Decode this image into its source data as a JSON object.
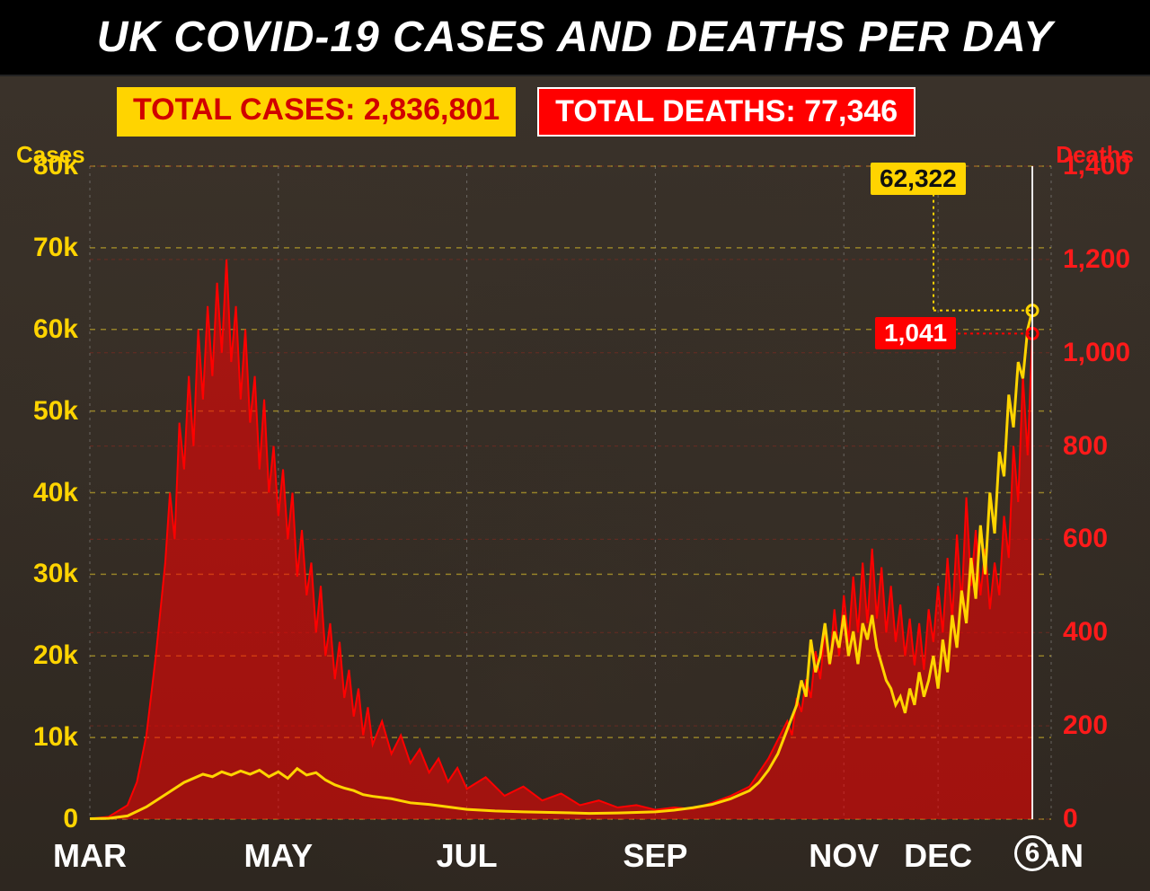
{
  "title": "UK COVID-19 CASES AND DEATHS PER DAY",
  "chart": {
    "type": "dual-axis-line-area",
    "background_color": "#2e2720",
    "title_fontsize": 48,
    "title_color": "#ffffff",
    "axis_left": {
      "label": "Cases",
      "label_color": "#ffd400",
      "label_fontsize": 26,
      "ylim": [
        0,
        80000
      ],
      "ticks": [
        0,
        10000,
        20000,
        30000,
        40000,
        50000,
        60000,
        70000,
        80000
      ],
      "tick_labels": [
        "0",
        "10k",
        "20k",
        "30k",
        "40k",
        "50k",
        "60k",
        "70k",
        "80k"
      ],
      "tick_color": "#ffd400",
      "tick_fontsize": 30,
      "grid_color": "#bfa62a",
      "grid_dash": "6,6"
    },
    "axis_right": {
      "label": "Deaths",
      "label_color": "#ff1a1a",
      "label_fontsize": 26,
      "ylim": [
        0,
        1400
      ],
      "ticks": [
        0,
        200,
        400,
        600,
        800,
        1000,
        1200,
        1400
      ],
      "tick_labels": [
        "0",
        "200",
        "400",
        "600",
        "800",
        "1,000",
        "1,200",
        "1,400"
      ],
      "tick_color": "#ff1a1a",
      "tick_fontsize": 30,
      "grid_color": "#8a2a20",
      "grid_dash": "4,4"
    },
    "axis_x": {
      "ticks": [
        0,
        2,
        4,
        6,
        8,
        9,
        10.2
      ],
      "tick_labels": [
        "MAR",
        "MAY",
        "JUL",
        "SEP",
        "NOV",
        "DEC",
        "JAN"
      ],
      "tick_color": "#ffffff",
      "tick_fontsize": 36,
      "xlim": [
        0,
        10.2
      ],
      "grid_color": "#aaaaaa",
      "grid_dash": "3,5",
      "highlight_date": {
        "label": "6",
        "position": 10.0
      }
    },
    "totals": {
      "cases": {
        "label": "TOTAL CASES: 2,836,801",
        "bg": "#ffd400",
        "fg": "#d10000"
      },
      "deaths": {
        "label": "TOTAL DEATHS: 77,346",
        "bg": "#ff0000",
        "fg": "#ffffff"
      }
    },
    "callouts": {
      "cases": {
        "value": "62,322",
        "bg": "#ffd400",
        "fg": "#111111",
        "x": 10.0,
        "y_cases": 62322
      },
      "deaths": {
        "value": "1,041",
        "bg": "#ff0000",
        "fg": "#ffffff",
        "x": 10.0,
        "y_deaths": 1041
      }
    },
    "series_cases": {
      "color": "#ffd400",
      "line_width": 3,
      "end_marker_radius": 6,
      "data": [
        [
          0,
          50
        ],
        [
          0.2,
          100
        ],
        [
          0.4,
          400
        ],
        [
          0.6,
          1500
        ],
        [
          0.8,
          3000
        ],
        [
          1.0,
          4500
        ],
        [
          1.1,
          5000
        ],
        [
          1.2,
          5500
        ],
        [
          1.3,
          5200
        ],
        [
          1.4,
          5800
        ],
        [
          1.5,
          5400
        ],
        [
          1.6,
          5900
        ],
        [
          1.7,
          5500
        ],
        [
          1.8,
          6000
        ],
        [
          1.9,
          5200
        ],
        [
          2.0,
          5800
        ],
        [
          2.1,
          5000
        ],
        [
          2.2,
          6200
        ],
        [
          2.3,
          5400
        ],
        [
          2.4,
          5700
        ],
        [
          2.5,
          4800
        ],
        [
          2.6,
          4200
        ],
        [
          2.7,
          3800
        ],
        [
          2.8,
          3500
        ],
        [
          2.9,
          3000
        ],
        [
          3.0,
          2800
        ],
        [
          3.2,
          2500
        ],
        [
          3.4,
          2000
        ],
        [
          3.6,
          1800
        ],
        [
          3.8,
          1500
        ],
        [
          4.0,
          1200
        ],
        [
          4.3,
          1000
        ],
        [
          4.6,
          900
        ],
        [
          5.0,
          800
        ],
        [
          5.3,
          700
        ],
        [
          5.6,
          750
        ],
        [
          6.0,
          900
        ],
        [
          6.2,
          1100
        ],
        [
          6.4,
          1400
        ],
        [
          6.6,
          1800
        ],
        [
          6.8,
          2500
        ],
        [
          7.0,
          3500
        ],
        [
          7.1,
          4500
        ],
        [
          7.2,
          6000
        ],
        [
          7.3,
          8000
        ],
        [
          7.4,
          11000
        ],
        [
          7.5,
          14000
        ],
        [
          7.55,
          17000
        ],
        [
          7.6,
          15000
        ],
        [
          7.65,
          22000
        ],
        [
          7.7,
          18000
        ],
        [
          7.75,
          20000
        ],
        [
          7.8,
          24000
        ],
        [
          7.85,
          19000
        ],
        [
          7.9,
          23000
        ],
        [
          7.95,
          21000
        ],
        [
          8.0,
          25000
        ],
        [
          8.05,
          20000
        ],
        [
          8.1,
          23000
        ],
        [
          8.15,
          19000
        ],
        [
          8.2,
          24000
        ],
        [
          8.25,
          22000
        ],
        [
          8.3,
          25000
        ],
        [
          8.35,
          21000
        ],
        [
          8.4,
          19000
        ],
        [
          8.45,
          17000
        ],
        [
          8.5,
          16000
        ],
        [
          8.55,
          14000
        ],
        [
          8.6,
          15000
        ],
        [
          8.65,
          13000
        ],
        [
          8.7,
          16000
        ],
        [
          8.75,
          14000
        ],
        [
          8.8,
          18000
        ],
        [
          8.85,
          15000
        ],
        [
          8.9,
          17000
        ],
        [
          8.95,
          20000
        ],
        [
          9.0,
          16000
        ],
        [
          9.05,
          22000
        ],
        [
          9.1,
          18000
        ],
        [
          9.15,
          25000
        ],
        [
          9.2,
          21000
        ],
        [
          9.25,
          28000
        ],
        [
          9.3,
          24000
        ],
        [
          9.35,
          32000
        ],
        [
          9.4,
          27000
        ],
        [
          9.45,
          36000
        ],
        [
          9.5,
          30000
        ],
        [
          9.55,
          40000
        ],
        [
          9.6,
          35000
        ],
        [
          9.65,
          45000
        ],
        [
          9.7,
          42000
        ],
        [
          9.75,
          52000
        ],
        [
          9.8,
          48000
        ],
        [
          9.85,
          56000
        ],
        [
          9.9,
          54000
        ],
        [
          9.95,
          60000
        ],
        [
          10.0,
          62322
        ]
      ]
    },
    "series_deaths": {
      "fill_color": "#ff0000",
      "fill_opacity": 0.55,
      "stroke_color": "#ff0000",
      "line_width": 2,
      "end_marker_radius": 6,
      "data": [
        [
          0,
          1
        ],
        [
          0.2,
          5
        ],
        [
          0.4,
          30
        ],
        [
          0.5,
          80
        ],
        [
          0.6,
          180
        ],
        [
          0.7,
          350
        ],
        [
          0.8,
          550
        ],
        [
          0.85,
          700
        ],
        [
          0.9,
          600
        ],
        [
          0.95,
          850
        ],
        [
          1.0,
          750
        ],
        [
          1.05,
          950
        ],
        [
          1.1,
          800
        ],
        [
          1.15,
          1050
        ],
        [
          1.2,
          900
        ],
        [
          1.25,
          1100
        ],
        [
          1.3,
          950
        ],
        [
          1.35,
          1150
        ],
        [
          1.4,
          1000
        ],
        [
          1.45,
          1200
        ],
        [
          1.5,
          980
        ],
        [
          1.55,
          1100
        ],
        [
          1.6,
          900
        ],
        [
          1.65,
          1050
        ],
        [
          1.7,
          850
        ],
        [
          1.75,
          950
        ],
        [
          1.8,
          750
        ],
        [
          1.85,
          900
        ],
        [
          1.9,
          700
        ],
        [
          1.95,
          800
        ],
        [
          2.0,
          650
        ],
        [
          2.05,
          750
        ],
        [
          2.1,
          600
        ],
        [
          2.15,
          700
        ],
        [
          2.2,
          520
        ],
        [
          2.25,
          620
        ],
        [
          2.3,
          480
        ],
        [
          2.35,
          550
        ],
        [
          2.4,
          400
        ],
        [
          2.45,
          500
        ],
        [
          2.5,
          350
        ],
        [
          2.55,
          420
        ],
        [
          2.6,
          300
        ],
        [
          2.65,
          380
        ],
        [
          2.7,
          260
        ],
        [
          2.75,
          320
        ],
        [
          2.8,
          220
        ],
        [
          2.85,
          280
        ],
        [
          2.9,
          180
        ],
        [
          2.95,
          240
        ],
        [
          3.0,
          160
        ],
        [
          3.1,
          210
        ],
        [
          3.2,
          140
        ],
        [
          3.3,
          180
        ],
        [
          3.4,
          120
        ],
        [
          3.5,
          150
        ],
        [
          3.6,
          100
        ],
        [
          3.7,
          130
        ],
        [
          3.8,
          80
        ],
        [
          3.9,
          110
        ],
        [
          4.0,
          65
        ],
        [
          4.2,
          90
        ],
        [
          4.4,
          50
        ],
        [
          4.6,
          70
        ],
        [
          4.8,
          40
        ],
        [
          5.0,
          55
        ],
        [
          5.2,
          30
        ],
        [
          5.4,
          40
        ],
        [
          5.6,
          25
        ],
        [
          5.8,
          30
        ],
        [
          6.0,
          20
        ],
        [
          6.2,
          25
        ],
        [
          6.4,
          22
        ],
        [
          6.6,
          35
        ],
        [
          6.8,
          50
        ],
        [
          7.0,
          70
        ],
        [
          7.1,
          100
        ],
        [
          7.2,
          130
        ],
        [
          7.3,
          170
        ],
        [
          7.4,
          210
        ],
        [
          7.45,
          180
        ],
        [
          7.5,
          260
        ],
        [
          7.55,
          230
        ],
        [
          7.6,
          300
        ],
        [
          7.65,
          260
        ],
        [
          7.7,
          360
        ],
        [
          7.75,
          300
        ],
        [
          7.8,
          410
        ],
        [
          7.85,
          330
        ],
        [
          7.9,
          450
        ],
        [
          7.95,
          350
        ],
        [
          8.0,
          480
        ],
        [
          8.05,
          380
        ],
        [
          8.1,
          520
        ],
        [
          8.15,
          400
        ],
        [
          8.2,
          550
        ],
        [
          8.25,
          420
        ],
        [
          8.3,
          580
        ],
        [
          8.35,
          430
        ],
        [
          8.4,
          540
        ],
        [
          8.45,
          400
        ],
        [
          8.5,
          500
        ],
        [
          8.55,
          380
        ],
        [
          8.6,
          460
        ],
        [
          8.65,
          350
        ],
        [
          8.7,
          430
        ],
        [
          8.75,
          330
        ],
        [
          8.8,
          420
        ],
        [
          8.85,
          320
        ],
        [
          8.9,
          450
        ],
        [
          8.95,
          380
        ],
        [
          9.0,
          500
        ],
        [
          9.05,
          400
        ],
        [
          9.1,
          560
        ],
        [
          9.15,
          430
        ],
        [
          9.2,
          610
        ],
        [
          9.25,
          460
        ],
        [
          9.3,
          690
        ],
        [
          9.35,
          500
        ],
        [
          9.4,
          620
        ],
        [
          9.45,
          480
        ],
        [
          9.5,
          580
        ],
        [
          9.55,
          450
        ],
        [
          9.6,
          550
        ],
        [
          9.65,
          480
        ],
        [
          9.7,
          650
        ],
        [
          9.75,
          560
        ],
        [
          9.8,
          800
        ],
        [
          9.85,
          680
        ],
        [
          9.9,
          950
        ],
        [
          9.95,
          780
        ],
        [
          10.0,
          1041
        ]
      ]
    }
  }
}
